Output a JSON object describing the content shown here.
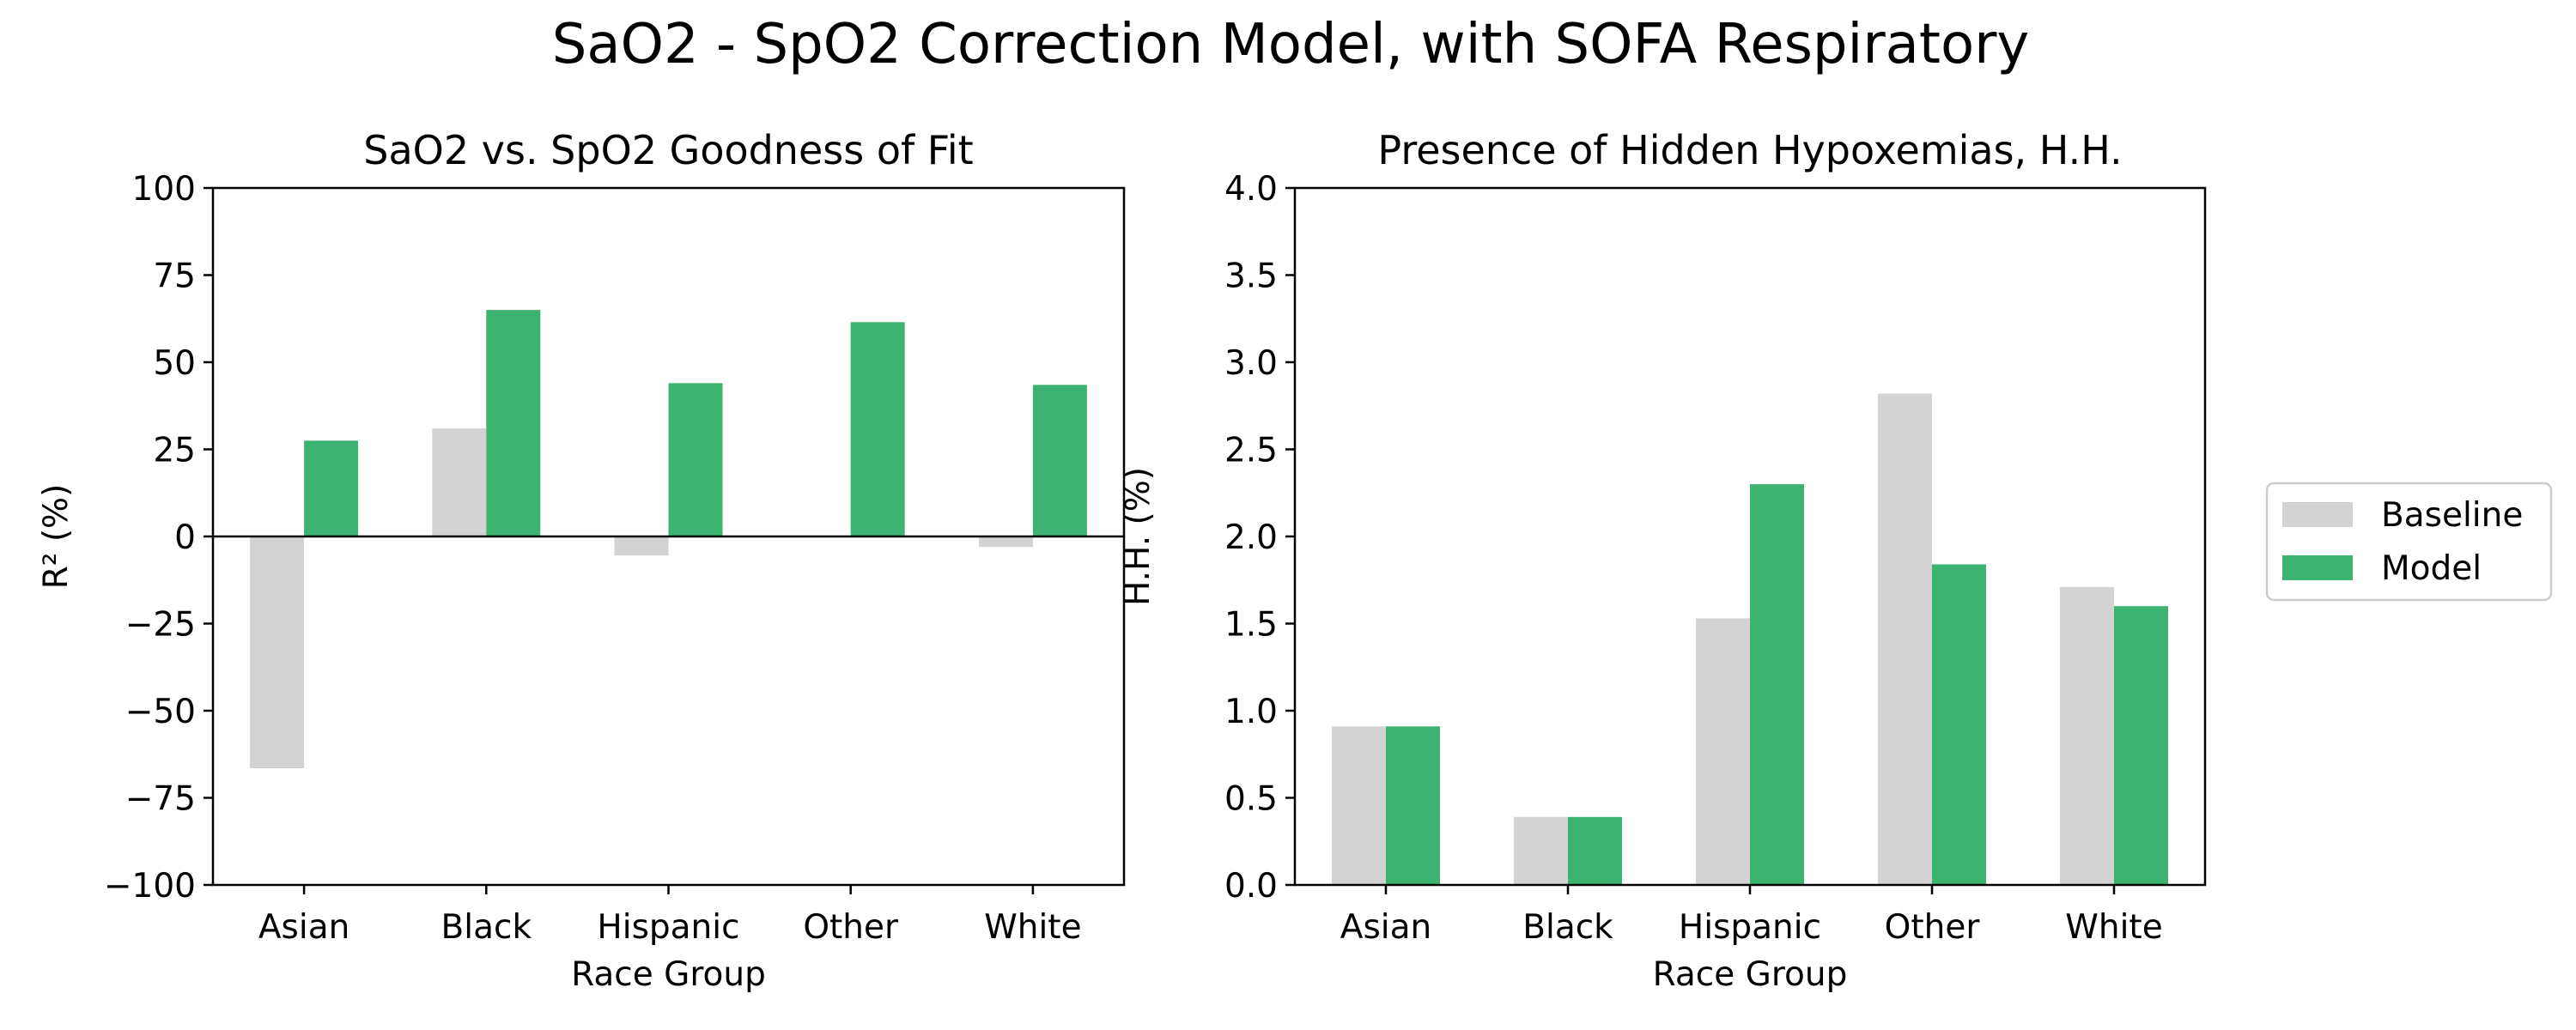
{
  "figure": {
    "title": "SaO2 - SpO2 Correction Model, with SOFA Respiratory"
  },
  "legend": {
    "entries": [
      {
        "label": "Baseline",
        "color": "#d3d3d3"
      },
      {
        "label": "Model",
        "color": "#3cb371"
      }
    ]
  },
  "chart_data": [
    {
      "type": "bar",
      "title": "SaO2 vs. SpO2 Goodness of Fit",
      "xlabel": "Race Group",
      "ylabel": "R² (%)",
      "categories": [
        "Asian",
        "Black",
        "Hispanic",
        "Other",
        "White"
      ],
      "series": [
        {
          "name": "Baseline",
          "color": "#d3d3d3",
          "values": [
            -66.5,
            31,
            -5.5,
            0,
            -3
          ]
        },
        {
          "name": "Model",
          "color": "#3cb371",
          "values": [
            27.5,
            65,
            44,
            61.5,
            43.5
          ]
        }
      ],
      "ylim": [
        -100,
        100
      ],
      "yticks": [
        100,
        75,
        50,
        25,
        0,
        -25,
        -50,
        -75,
        -100
      ],
      "ytick_labels": [
        "100",
        "75",
        "50",
        "25",
        "0",
        "−25",
        "−50",
        "−75",
        "−100"
      ],
      "zero_line": true,
      "grid": false
    },
    {
      "type": "bar",
      "title": "Presence of Hidden Hypoxemias, H.H.",
      "xlabel": "Race Group",
      "ylabel": "H.H. (%)",
      "categories": [
        "Asian",
        "Black",
        "Hispanic",
        "Other",
        "White"
      ],
      "series": [
        {
          "name": "Baseline",
          "color": "#d3d3d3",
          "values": [
            0.91,
            0.39,
            1.53,
            2.82,
            1.71
          ]
        },
        {
          "name": "Model",
          "color": "#3cb371",
          "values": [
            0.91,
            0.39,
            2.3,
            1.84,
            1.6
          ]
        }
      ],
      "ylim": [
        0,
        4
      ],
      "yticks": [
        0,
        0.5,
        1,
        1.5,
        2,
        2.5,
        3,
        3.5,
        4
      ],
      "ytick_labels": [
        "0.0",
        "0.5",
        "1.0",
        "1.5",
        "2.0",
        "2.5",
        "3.0",
        "3.5",
        "4.0"
      ],
      "zero_line": false,
      "grid": false
    }
  ]
}
